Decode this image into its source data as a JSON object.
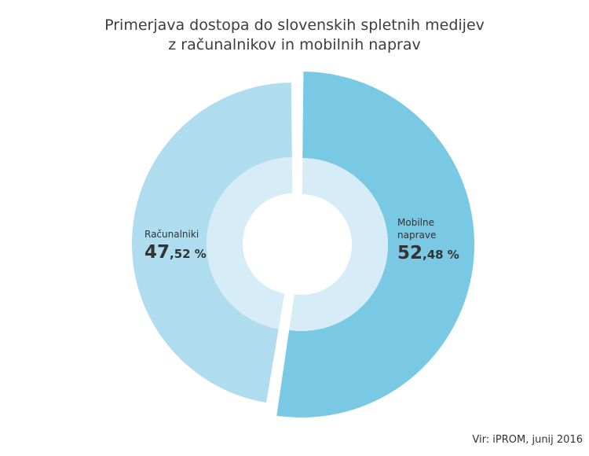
{
  "chart_data": {
    "type": "pie",
    "title_lines": [
      "Primerjava dostopa do slovenskih spletnih medijev",
      "z računalnikov in mobilnih naprav"
    ],
    "slices": [
      {
        "name": "Mobilne\nnaprave",
        "value": 52.48,
        "int_part": "52",
        "frac_part": ",48 %",
        "color": "#79c8e4"
      },
      {
        "name": "Računalniki",
        "value": 47.52,
        "int_part": "47",
        "frac_part": ",52 %",
        "color": "#afdcee"
      }
    ],
    "inner_ring_color": "#d6edf7",
    "source": "Vir: iPROM, junij 2016"
  }
}
